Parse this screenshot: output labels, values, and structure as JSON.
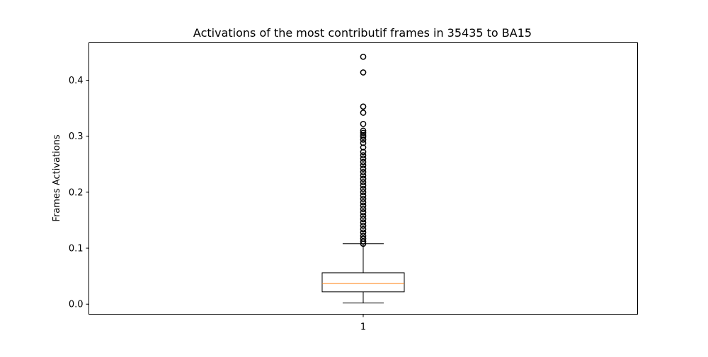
{
  "chart_data": {
    "type": "box",
    "title": "Activations of the most contributif frames in 35435 to BA15",
    "xlabel": "",
    "ylabel": "Frames Activations",
    "categories": [
      "1"
    ],
    "ylim": [
      -0.018,
      0.467
    ],
    "yticks": [
      0.0,
      0.1,
      0.2,
      0.3,
      0.4
    ],
    "ytick_labels": [
      "0.0",
      "0.1",
      "0.2",
      "0.3",
      "0.4"
    ],
    "grid": false,
    "box": {
      "whisker_low": 0.002,
      "q1": 0.022,
      "median": 0.037,
      "q3": 0.056,
      "whisker_high": 0.108,
      "outliers": [
        0.442,
        0.414,
        0.353,
        0.342,
        0.322,
        0.31,
        0.306,
        0.302,
        0.299,
        0.294,
        0.288,
        0.28,
        0.272,
        0.266,
        0.26,
        0.254,
        0.248,
        0.242,
        0.236,
        0.23,
        0.224,
        0.218,
        0.212,
        0.206,
        0.2,
        0.194,
        0.188,
        0.182,
        0.176,
        0.17,
        0.164,
        0.158,
        0.152,
        0.146,
        0.14,
        0.134,
        0.128,
        0.122,
        0.117,
        0.112,
        0.108
      ]
    },
    "colors": {
      "box": "#000000",
      "median": "#ff7f0e",
      "outlier_edge": "#000000"
    }
  }
}
